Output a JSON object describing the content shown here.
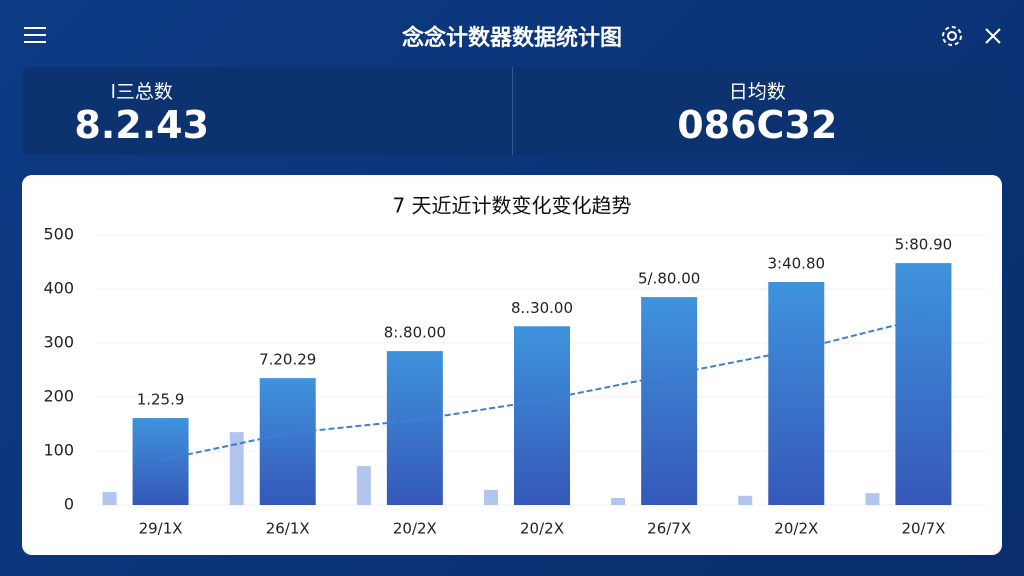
{
  "header": {
    "title": "念念计数器数据统计图"
  },
  "stats": [
    {
      "label": "l三总数",
      "value": "8.2.43"
    },
    {
      "label": "日均数",
      "value": "086C32"
    }
  ],
  "chart_data": {
    "type": "bar",
    "title": "7 天近近计数变化变化趋势",
    "categories": [
      "29/1X",
      "26/1X",
      "20/2X",
      "20/2X",
      "26/7X",
      "20/2X",
      "20/7X"
    ],
    "series": [
      {
        "color": "#3d7fd6",
        "values": [
          161,
          235,
          285,
          331,
          385,
          413,
          448
        ]
      },
      {
        "color": "#9fb7ea",
        "values": [
          24,
          135,
          72,
          28,
          13,
          17,
          22
        ]
      },
      {
        "type": "line",
        "color": "#3f7fd8",
        "values": [
          83,
          133,
          157,
          194,
          241,
          287,
          346
        ]
      }
    ],
    "annotations": [
      "1.25.9",
      "7.20.29",
      "8:.80.00",
      "8..30.00",
      "5/.80.00",
      "3:40.80",
      "5:80.90"
    ],
    "ylim": [
      0,
      500
    ],
    "yticks": [
      0,
      100,
      200,
      300,
      400,
      500
    ],
    "grid": true
  }
}
